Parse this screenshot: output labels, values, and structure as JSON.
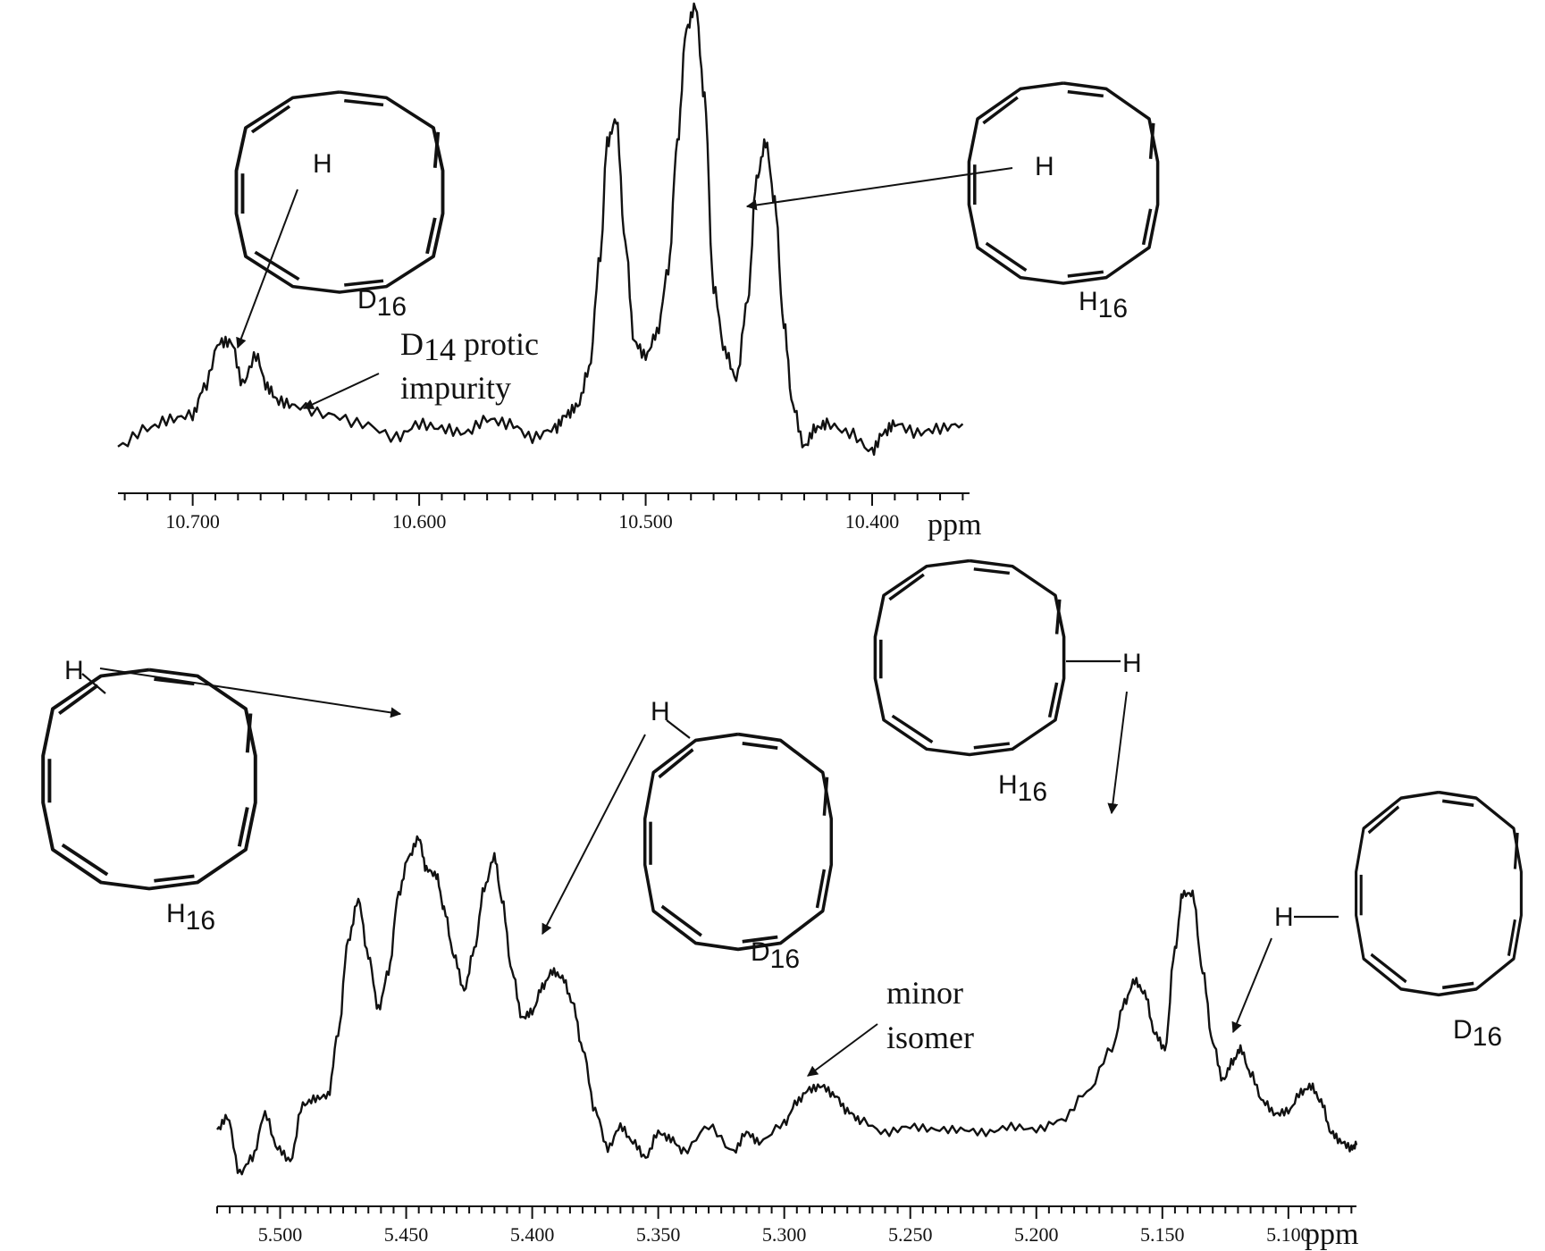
{
  "chart_data": [
    {
      "type": "line",
      "id": "top",
      "xlabel": "ppm",
      "xlim": [
        10.733,
        10.357
      ],
      "xticks": [
        10.7,
        10.6,
        10.5,
        10.4
      ],
      "xtick_labels": [
        "10.700",
        "10.600",
        "10.500",
        "10.400"
      ],
      "series": [
        {
          "x": [
            10.733,
            10.72,
            10.71,
            10.7,
            10.695,
            10.688,
            10.683,
            10.678,
            10.672,
            10.667,
            10.662,
            10.655,
            10.64,
            10.625,
            10.61,
            10.6,
            10.59,
            10.58,
            10.57,
            10.56,
            10.55,
            10.54,
            10.535,
            10.53,
            10.525,
            10.52,
            10.517,
            10.513,
            10.509,
            10.505,
            10.5,
            10.495,
            10.49,
            10.486,
            10.482,
            10.478,
            10.474,
            10.47,
            10.465,
            10.46,
            10.455,
            10.451,
            10.447,
            10.443,
            10.439,
            10.435,
            10.43,
            10.425,
            10.42,
            10.41,
            10.4,
            10.395,
            10.39,
            10.38,
            10.37,
            10.36
          ],
          "y": [
            0.03,
            0.07,
            0.09,
            0.1,
            0.16,
            0.26,
            0.26,
            0.17,
            0.23,
            0.16,
            0.13,
            0.12,
            0.1,
            0.08,
            0.05,
            0.08,
            0.07,
            0.06,
            0.09,
            0.08,
            0.05,
            0.07,
            0.1,
            0.12,
            0.2,
            0.45,
            0.7,
            0.75,
            0.48,
            0.26,
            0.23,
            0.28,
            0.42,
            0.7,
            0.95,
            1.0,
            0.8,
            0.38,
            0.24,
            0.18,
            0.35,
            0.62,
            0.7,
            0.57,
            0.3,
            0.12,
            0.03,
            0.07,
            0.08,
            0.06,
            0.02,
            0.06,
            0.08,
            0.06,
            0.07,
            0.08
          ]
        }
      ],
      "annotations": [
        {
          "text": "H",
          "subscript": "16"
        },
        {
          "text": "H",
          "subscript": "16"
        },
        {
          "text": "D",
          "subscript": "16"
        },
        {
          "line1_pre": "D",
          "line1_sub": "14",
          "line1_post": " protic",
          "line2": "impurity"
        }
      ]
    },
    {
      "type": "line",
      "id": "bottom",
      "xlabel": "ppm",
      "xlim": [
        5.525,
        5.073
      ],
      "xticks": [
        5.5,
        5.45,
        5.4,
        5.35,
        5.3,
        5.25,
        5.2,
        5.15,
        5.1
      ],
      "xtick_labels": [
        "5.500",
        "5.450",
        "5.400",
        "5.350",
        "5.300",
        "5.250",
        "5.200",
        "5.150",
        "5.100"
      ],
      "series": [
        {
          "x": [
            5.525,
            5.521,
            5.516,
            5.511,
            5.506,
            5.501,
            5.496,
            5.491,
            5.486,
            5.481,
            5.477,
            5.473,
            5.469,
            5.465,
            5.461,
            5.457,
            5.453,
            5.449,
            5.445,
            5.442,
            5.438,
            5.435,
            5.431,
            5.427,
            5.423,
            5.419,
            5.415,
            5.412,
            5.408,
            5.404,
            5.4,
            5.396,
            5.392,
            5.388,
            5.384,
            5.38,
            5.375,
            5.37,
            5.365,
            5.36,
            5.355,
            5.35,
            5.345,
            5.34,
            5.33,
            5.32,
            5.315,
            5.31,
            5.3,
            5.295,
            5.29,
            5.285,
            5.28,
            5.275,
            5.27,
            5.26,
            5.25,
            5.24,
            5.23,
            5.22,
            5.21,
            5.2,
            5.19,
            5.18,
            5.17,
            5.165,
            5.161,
            5.157,
            5.153,
            5.149,
            5.145,
            5.142,
            5.138,
            5.134,
            5.13,
            5.126,
            5.122,
            5.119,
            5.115,
            5.11,
            5.105,
            5.1,
            5.095,
            5.091,
            5.087,
            5.083,
            5.079,
            5.075,
            5.073
          ],
          "y": [
            0.04,
            0.08,
            -0.1,
            -0.05,
            0.09,
            -0.02,
            -0.06,
            0.12,
            0.14,
            0.15,
            0.35,
            0.65,
            0.78,
            0.6,
            0.43,
            0.55,
            0.8,
            0.92,
            0.98,
            0.88,
            0.86,
            0.75,
            0.6,
            0.49,
            0.62,
            0.82,
            0.92,
            0.78,
            0.55,
            0.4,
            0.42,
            0.5,
            0.55,
            0.53,
            0.45,
            0.3,
            0.1,
            -0.02,
            0.05,
            0.0,
            -0.05,
            0.03,
            0.01,
            -0.03,
            0.05,
            -0.03,
            0.03,
            0.0,
            0.06,
            0.13,
            0.17,
            0.18,
            0.15,
            0.1,
            0.07,
            0.03,
            0.05,
            0.04,
            0.04,
            0.03,
            0.05,
            0.04,
            0.07,
            0.16,
            0.3,
            0.45,
            0.52,
            0.48,
            0.35,
            0.3,
            0.62,
            0.8,
            0.8,
            0.55,
            0.32,
            0.2,
            0.26,
            0.3,
            0.22,
            0.13,
            0.09,
            0.1,
            0.16,
            0.18,
            0.13,
            0.03,
            0.0,
            -0.02,
            -0.01
          ]
        }
      ],
      "annotations": [
        {
          "text": "H",
          "subscript": "16"
        },
        {
          "text": "H",
          "subscript": "16"
        },
        {
          "text": "D",
          "subscript": "16"
        },
        {
          "text": "D",
          "subscript": "16"
        },
        {
          "line1": "minor",
          "line2": "isomer"
        }
      ]
    }
  ],
  "labels": {
    "proton": "H"
  }
}
